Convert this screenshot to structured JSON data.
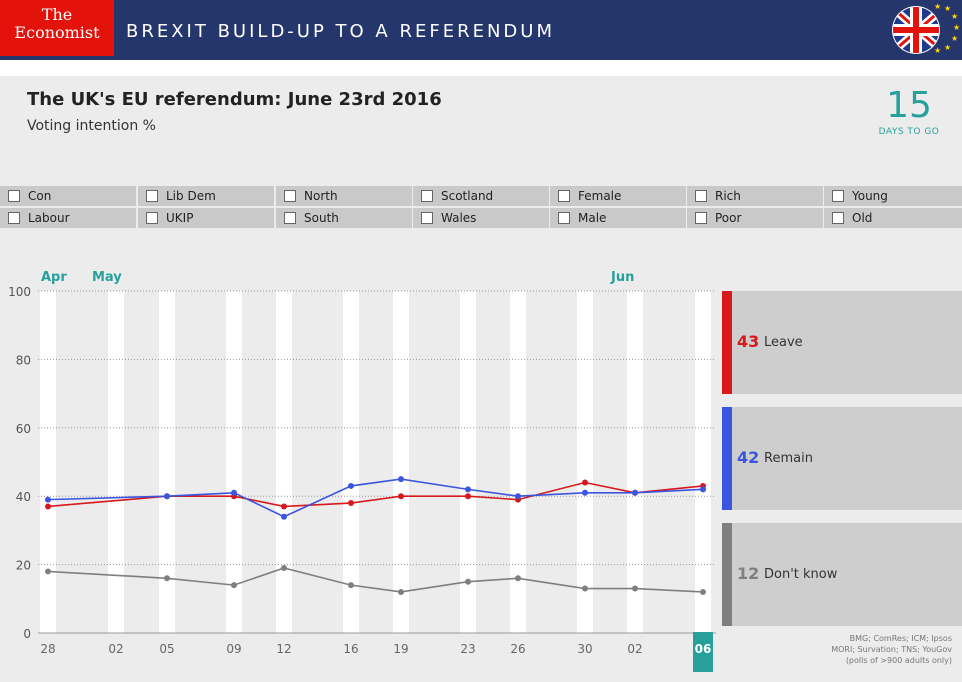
{
  "brand": {
    "logo_line1": "The",
    "logo_line2": "Economist",
    "banner_title": "BREXIT BUILD-UP TO A REFERENDUM",
    "flag_icon": "union-jack-eu-flag-icon"
  },
  "header": {
    "title": "The UK's EU referendum: June 23rd 2016",
    "subtitle": "Voting intention %"
  },
  "countdown": {
    "days": "15",
    "label": "DAYS TO GO"
  },
  "filters": [
    {
      "label": "Con"
    },
    {
      "label": "Lib Dem"
    },
    {
      "label": "North"
    },
    {
      "label": "Scotland"
    },
    {
      "label": "Female"
    },
    {
      "label": "Rich"
    },
    {
      "label": "Young"
    },
    {
      "label": "Labour"
    },
    {
      "label": "UKIP"
    },
    {
      "label": "South"
    },
    {
      "label": "Wales"
    },
    {
      "label": "Male"
    },
    {
      "label": "Poor"
    },
    {
      "label": "Old"
    }
  ],
  "chart_data": {
    "type": "line",
    "title": "The UK's EU referendum: June 23rd 2016",
    "ylabel": "Voting intention %",
    "ylim": [
      0,
      100
    ],
    "yticks": [
      0,
      20,
      40,
      60,
      80,
      100
    ],
    "grid": true,
    "months": [
      {
        "label": "Apr",
        "at_week": 0
      },
      {
        "label": "May",
        "at_week": 1
      },
      {
        "label": "Jun",
        "at_week": 11
      }
    ],
    "x": [
      "28",
      "02",
      "05",
      "09",
      "12",
      "16",
      "19",
      "23",
      "26",
      "30",
      "02",
      "06"
    ],
    "highlight_x": "06",
    "series": [
      {
        "name": "Leave",
        "color": "#d7191c",
        "values": [
          37,
          null,
          40,
          40,
          37,
          38,
          40,
          40,
          39,
          44,
          41,
          43
        ]
      },
      {
        "name": "Remain",
        "color": "#3a55e0",
        "values": [
          39,
          null,
          40,
          41,
          34,
          43,
          45,
          42,
          40,
          41,
          41,
          42
        ]
      },
      {
        "name": "Don't know",
        "color": "#7f7f7f",
        "values": [
          18,
          null,
          16,
          14,
          19,
          14,
          12,
          15,
          16,
          13,
          13,
          12
        ]
      }
    ],
    "legend": [
      {
        "value": "43",
        "name": "Leave",
        "color": "#d7191c"
      },
      {
        "value": "42",
        "name": "Remain",
        "color": "#3a55e0"
      },
      {
        "value": "12",
        "name": "Don't know",
        "color": "#7f7f7f"
      }
    ]
  },
  "source": {
    "line1": "BMG; ComRes; ICM; Ipsos",
    "line2": "MORI; Survation; TNS; YouGov",
    "line3": "(polls of >900 adults only)"
  }
}
